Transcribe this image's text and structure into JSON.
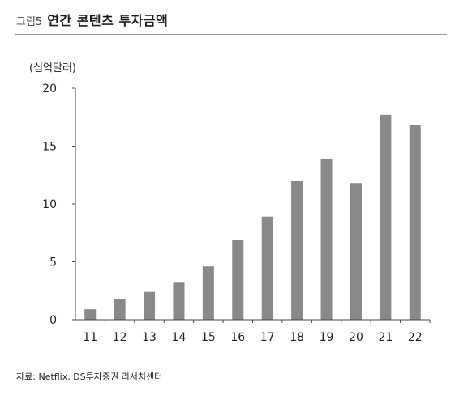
{
  "figure": {
    "label": "그림5",
    "title": "연간 콘텐츠 투자금액",
    "source": "자료: Netflix, DS투자증권 리서치센터"
  },
  "colors": {
    "bar": "#898989",
    "axis": "#444444",
    "rule": "#9a9a9a"
  },
  "chart_data": {
    "type": "bar",
    "title": "연간 콘텐츠 투자금액",
    "unit": "(십억달러)",
    "xlabel": "",
    "ylabel": "",
    "categories": [
      "11",
      "12",
      "13",
      "14",
      "15",
      "16",
      "17",
      "18",
      "19",
      "20",
      "21",
      "22"
    ],
    "values": [
      0.9,
      1.8,
      2.4,
      3.2,
      4.6,
      6.9,
      8.9,
      12.0,
      13.9,
      11.8,
      17.7,
      16.8
    ],
    "ylim": [
      0,
      20
    ],
    "yticks": [
      "0",
      "5",
      "10",
      "15",
      "20"
    ],
    "grid": false,
    "legend": "none"
  }
}
